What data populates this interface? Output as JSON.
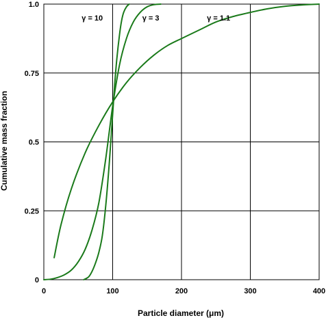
{
  "chart_data": {
    "type": "line",
    "title": "",
    "xlabel": "Particle diameter (μm)",
    "ylabel": "Cumulative mass fraction",
    "xlim": [
      0,
      400
    ],
    "ylim": [
      0,
      1
    ],
    "xticks": [
      0,
      100,
      200,
      300,
      400
    ],
    "xtick_labels": [
      "0",
      "100",
      "200",
      "300",
      "400"
    ],
    "yticks": [
      0,
      0.25,
      0.5,
      0.75,
      1.0
    ],
    "ytick_labels": [
      "0",
      "0.25",
      "0.5",
      "0.75",
      "1.0"
    ],
    "grid": true,
    "line_color": "#1a7a1a",
    "series": [
      {
        "name": "γ = 1.1",
        "x": [
          15,
          25,
          40,
          60,
          80,
          100,
          120,
          140,
          160,
          180,
          200,
          225,
          250,
          275,
          300,
          325,
          350,
          375,
          400
        ],
        "y": [
          0.08,
          0.2,
          0.33,
          0.46,
          0.56,
          0.645,
          0.715,
          0.77,
          0.815,
          0.85,
          0.875,
          0.905,
          0.935,
          0.955,
          0.97,
          0.983,
          0.992,
          0.997,
          1.0
        ]
      },
      {
        "name": "γ = 3",
        "x": [
          0,
          10,
          20,
          30,
          40,
          50,
          60,
          70,
          80,
          90,
          100,
          110,
          120,
          130,
          140,
          150,
          160,
          170
        ],
        "y": [
          0.0,
          0.002,
          0.008,
          0.018,
          0.035,
          0.065,
          0.11,
          0.18,
          0.28,
          0.44,
          0.63,
          0.78,
          0.875,
          0.935,
          0.97,
          0.99,
          0.998,
          1.0
        ]
      },
      {
        "name": "γ = 10",
        "x": [
          58,
          65,
          70,
          75,
          80,
          85,
          90,
          95,
          100,
          103,
          106,
          110,
          113,
          116,
          120,
          124
        ],
        "y": [
          0.0,
          0.01,
          0.03,
          0.06,
          0.1,
          0.16,
          0.27,
          0.42,
          0.6,
          0.71,
          0.8,
          0.89,
          0.94,
          0.97,
          0.99,
          1.0
        ]
      }
    ],
    "annotations": [
      {
        "text": "γ = 10",
        "x": 55,
        "y": 0.95
      },
      {
        "text": "γ = 3",
        "x": 143,
        "y": 0.95
      },
      {
        "text": "γ = 1.1",
        "x": 237,
        "y": 0.95
      }
    ]
  }
}
